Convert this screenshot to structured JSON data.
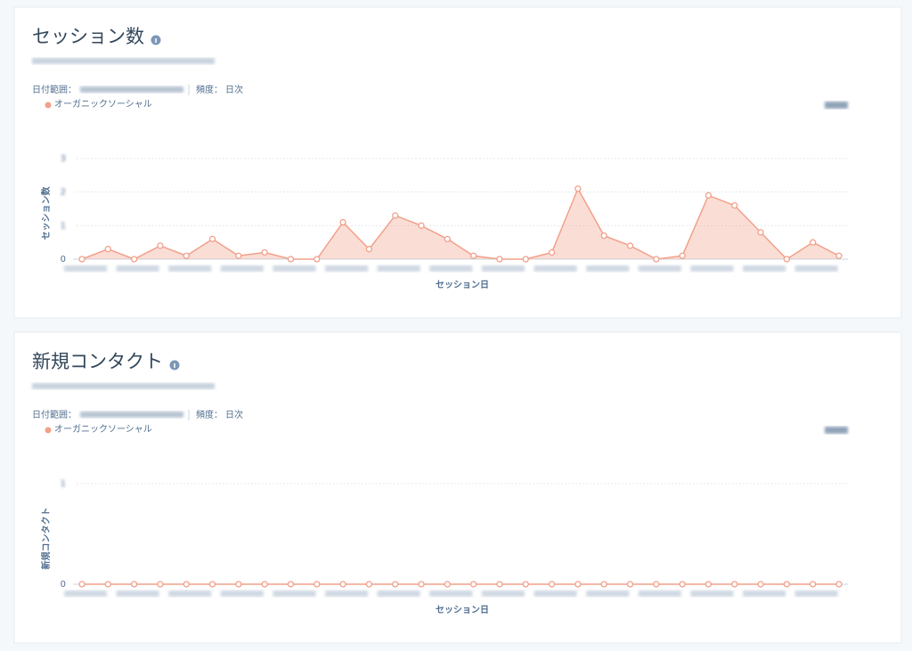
{
  "chart_data": [
    {
      "type": "area",
      "title": "セッション数",
      "date_range_label": "日付範囲：",
      "frequency_label": "頻度：",
      "frequency": "日次",
      "y_label": "セッション数",
      "x_label": "セッション日",
      "categories": [
        null,
        null,
        null,
        null,
        null,
        null,
        null,
        null,
        null,
        null,
        null,
        null,
        null,
        null,
        null,
        null,
        null,
        null,
        null,
        null,
        null,
        null,
        null,
        null,
        null,
        null,
        null,
        null,
        null,
        null
      ],
      "series": [
        {
          "name": "オーガニックソーシャル",
          "color": "#f2a08a",
          "values": [
            0,
            0.3,
            0,
            0.4,
            0.1,
            0.6,
            0.1,
            0.2,
            0,
            0,
            1.1,
            0.3,
            1.3,
            1.0,
            0.6,
            0.1,
            0,
            0,
            0.2,
            2.1,
            0.7,
            0.4,
            0,
            0.1,
            1.9,
            1.6,
            0.8,
            0,
            0.5,
            0.1
          ]
        }
      ],
      "ylim": [
        0,
        3
      ],
      "yticks": [
        0,
        1,
        2,
        3
      ],
      "grid": true
    },
    {
      "type": "area",
      "title": "新規コンタクト",
      "date_range_label": "日付範囲：",
      "frequency_label": "頻度：",
      "frequency": "日次",
      "y_label": "新規コンタクト",
      "x_label": "セッション日",
      "categories": [
        null,
        null,
        null,
        null,
        null,
        null,
        null,
        null,
        null,
        null,
        null,
        null,
        null,
        null,
        null,
        null,
        null,
        null,
        null,
        null,
        null,
        null,
        null,
        null,
        null,
        null,
        null,
        null,
        null,
        null
      ],
      "series": [
        {
          "name": "オーガニックソーシャル",
          "color": "#f2a08a",
          "values": [
            0,
            0,
            0,
            0,
            0,
            0,
            0,
            0,
            0,
            0,
            0,
            0,
            0,
            0,
            0,
            0,
            0,
            0,
            0,
            0,
            0,
            0,
            0,
            0,
            0,
            0,
            0,
            0,
            0,
            0
          ]
        }
      ],
      "ylim": [
        0,
        1
      ],
      "yticks": [
        0,
        1
      ],
      "grid": true
    }
  ]
}
